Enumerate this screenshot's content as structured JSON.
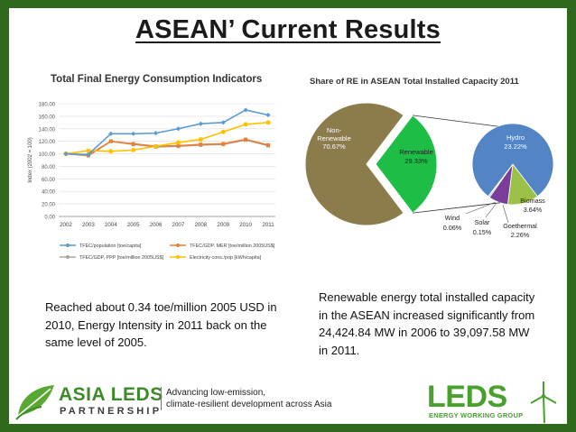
{
  "slide": {
    "title": "ASEAN’ Current Results",
    "left_caption": "Reached about 0.34 toe/million 2005 USD in 2010, Energy Intensity in 2011 back on the same level of 2005.",
    "right_caption": "Renewable energy total installed capacity in the ASEAN increased significantly from 24,424.84 MW in 2006 to 39,097.58 MW in 2011.",
    "footer": {
      "asia_leds": "ASIA LEDS",
      "partnership": "PARTNERSHIP",
      "tagline_1": "Advancing low-emission,",
      "tagline_2": "climate-resilient development across Asia",
      "leds": "LEDS",
      "leds_sub": "ENERGY WORKING GROUP"
    }
  },
  "chart_data": [
    {
      "type": "line",
      "title": "Total Final Energy Consumption Indicators",
      "ylabel": "Index (2002 = 100)",
      "xlabel": "",
      "ylim": [
        0,
        180
      ],
      "yticks": [
        "0.00",
        "20.00",
        "40.00",
        "60.00",
        "80.00",
        "100.00",
        "120.00",
        "140.00",
        "160.00",
        "180.00"
      ],
      "categories": [
        "2002",
        "2003",
        "2004",
        "2005",
        "2006",
        "2007",
        "2008",
        "2009",
        "2010",
        "2011"
      ],
      "grid": true,
      "legend_position": "bottom",
      "series": [
        {
          "name": "TFEC/population [toe/capita]",
          "color": "#5b9bd5",
          "values": [
            100,
            99,
            132,
            132,
            133,
            140,
            148,
            150,
            170,
            162
          ]
        },
        {
          "name": "TFEC/GDP, MER [toe/million 2005US$]",
          "color": "#ed7d31",
          "values": [
            100,
            98,
            120,
            116,
            112,
            113,
            115,
            116,
            123,
            114
          ]
        },
        {
          "name": "TFEC/GDP, PPP [toe/million 2005US$]",
          "color": "#a5a5a5",
          "values": [
            100,
            97,
            120,
            115,
            111,
            112,
            114,
            115,
            122,
            113
          ]
        },
        {
          "name": "Electricity cons./pop [kWh/capita]",
          "color": "#ffc000",
          "values": [
            100,
            105,
            104,
            106,
            112,
            118,
            123,
            135,
            147,
            150
          ]
        }
      ]
    },
    {
      "type": "pie",
      "title": "Share of  RE in ASEAN Total Installed Capacity 2011",
      "slices": [
        {
          "name": "Non-Renewable",
          "value": 70.67,
          "label": "70.67%",
          "color": "#8c7b4b"
        },
        {
          "name": "Renewable",
          "value": 29.33,
          "label": "29.33%",
          "color": "#1ebd46"
        }
      ],
      "breakdown": [
        {
          "name": "Hydro",
          "value": 23.22,
          "label": "23.22%",
          "color": "#5384c6"
        },
        {
          "name": "Biomass",
          "value": 3.64,
          "label": "3.64%",
          "color": "#9bc149"
        },
        {
          "name": "Goethermal",
          "value": 2.26,
          "label": "2.26%",
          "color": "#7a3d9a"
        },
        {
          "name": "Solar",
          "value": 0.15,
          "label": "0.15%",
          "color": "#3aa7c3"
        },
        {
          "name": "Wind",
          "value": 0.06,
          "label": "0.06%",
          "color": "#c8504c"
        }
      ]
    }
  ]
}
